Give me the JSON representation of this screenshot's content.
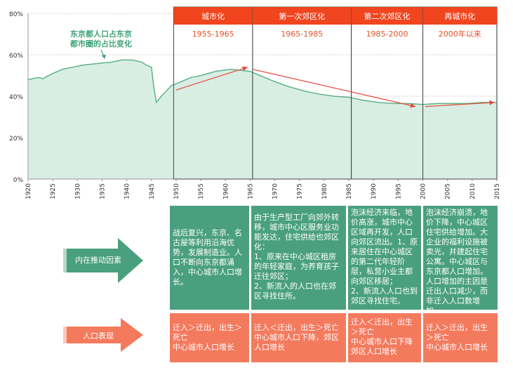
{
  "chart_data": {
    "type": "area",
    "annotation": "东京都人口占东京都市圈的占比变化",
    "ylim": [
      0,
      80
    ],
    "yticks": [
      "0%",
      "20%",
      "40%",
      "60%",
      "80%"
    ],
    "xlim": [
      1920,
      2015
    ],
    "xticks": [
      "1920",
      "1925",
      "1930",
      "1935",
      "1940",
      "1945",
      "1950",
      "1955",
      "1960",
      "1965",
      "1970",
      "1975",
      "1980",
      "1985",
      "1990",
      "1995",
      "2000",
      "2005",
      "2010",
      "2015"
    ],
    "x": [
      1920,
      1922,
      1923,
      1925,
      1927,
      1929,
      1931,
      1933,
      1935,
      1937,
      1939,
      1941,
      1943,
      1944,
      1945,
      1945.5,
      1946,
      1947,
      1949,
      1951,
      1953,
      1955,
      1958,
      1961,
      1963,
      1965,
      1967,
      1970,
      1973,
      1976,
      1979,
      1982,
      1985,
      1988,
      1991,
      1994,
      1997,
      2000,
      2003,
      2006,
      2009,
      2012,
      2015
    ],
    "y": [
      48,
      49,
      48.5,
      51,
      53,
      54,
      55,
      55.5,
      56,
      56.5,
      57.5,
      57.5,
      56.5,
      55,
      54,
      44,
      37,
      40,
      45,
      47,
      49,
      50,
      52,
      53,
      52.5,
      52,
      50,
      47,
      44.5,
      42.5,
      41,
      40,
      39.5,
      38,
      37,
      36.5,
      36.5,
      36,
      36.5,
      36.5,
      36.5,
      37,
      37
    ],
    "color_fill": "#d8eee4",
    "color_line": "#5fb38b"
  },
  "periods": [
    {
      "name": "城市化",
      "years": "1955-1965"
    },
    {
      "name": "第一次郊区化",
      "years": "1965-1985"
    },
    {
      "name": "第二次郊区化",
      "years": "1985-2000"
    },
    {
      "name": "再城市化",
      "years": "2000年以来"
    }
  ],
  "rows": {
    "drivers": {
      "label": "内在推动因素",
      "cells": [
        "战后复兴，东京、名古屋等利用沿海优势，发展制造业。人口不断向东京都涌入，中心城市人口增长。",
        "由于生产型工厂向郊外转移，城市中心区服务业功能发达，住宅供给也郊区化：\n1、原来在中心城区租房的年轻家庭，为养育孩子迁往郊区；\n2、新流入的人口也在郊区寻找住所。",
        "泡沫经济来临，地价高涨，城市中心区域再开发，人口向郊区流出。1、原来居住在中心城区的第二代年轻阶层，私营小业主都向郊区移居；\n2、新流入人口也到郊区寻找住宅。",
        "泡沫经济崩溃，地价下降，中心城区住宅供给增加。大企业的福利设施被卖光，并建起住宅公寓。中心城区与东京都人口增加。人口增加的主因是迁出人口减少，而非迁入人口数增加。"
      ]
    },
    "population": {
      "label": "人口表现",
      "cells": [
        "迁入＞迁出，出生＞死亡\n中心城市人口增长",
        "迁入＜迁出，出生＞死亡\n中心城市人口下降，郊区人口增长",
        "迁入＜迁出，出生＞死亡\n中心城市人口下降郊区人口增长",
        "迁入＞迁出，出生＞死亡\n中心城市人口增长"
      ]
    }
  },
  "colors": {
    "period_header": "#f0451e",
    "period_years": "#e2532a",
    "green": "#4aa07e",
    "orange": "#f47a5e",
    "trend_arrow": "#e84a3a",
    "annotation": "#3fa37a"
  }
}
